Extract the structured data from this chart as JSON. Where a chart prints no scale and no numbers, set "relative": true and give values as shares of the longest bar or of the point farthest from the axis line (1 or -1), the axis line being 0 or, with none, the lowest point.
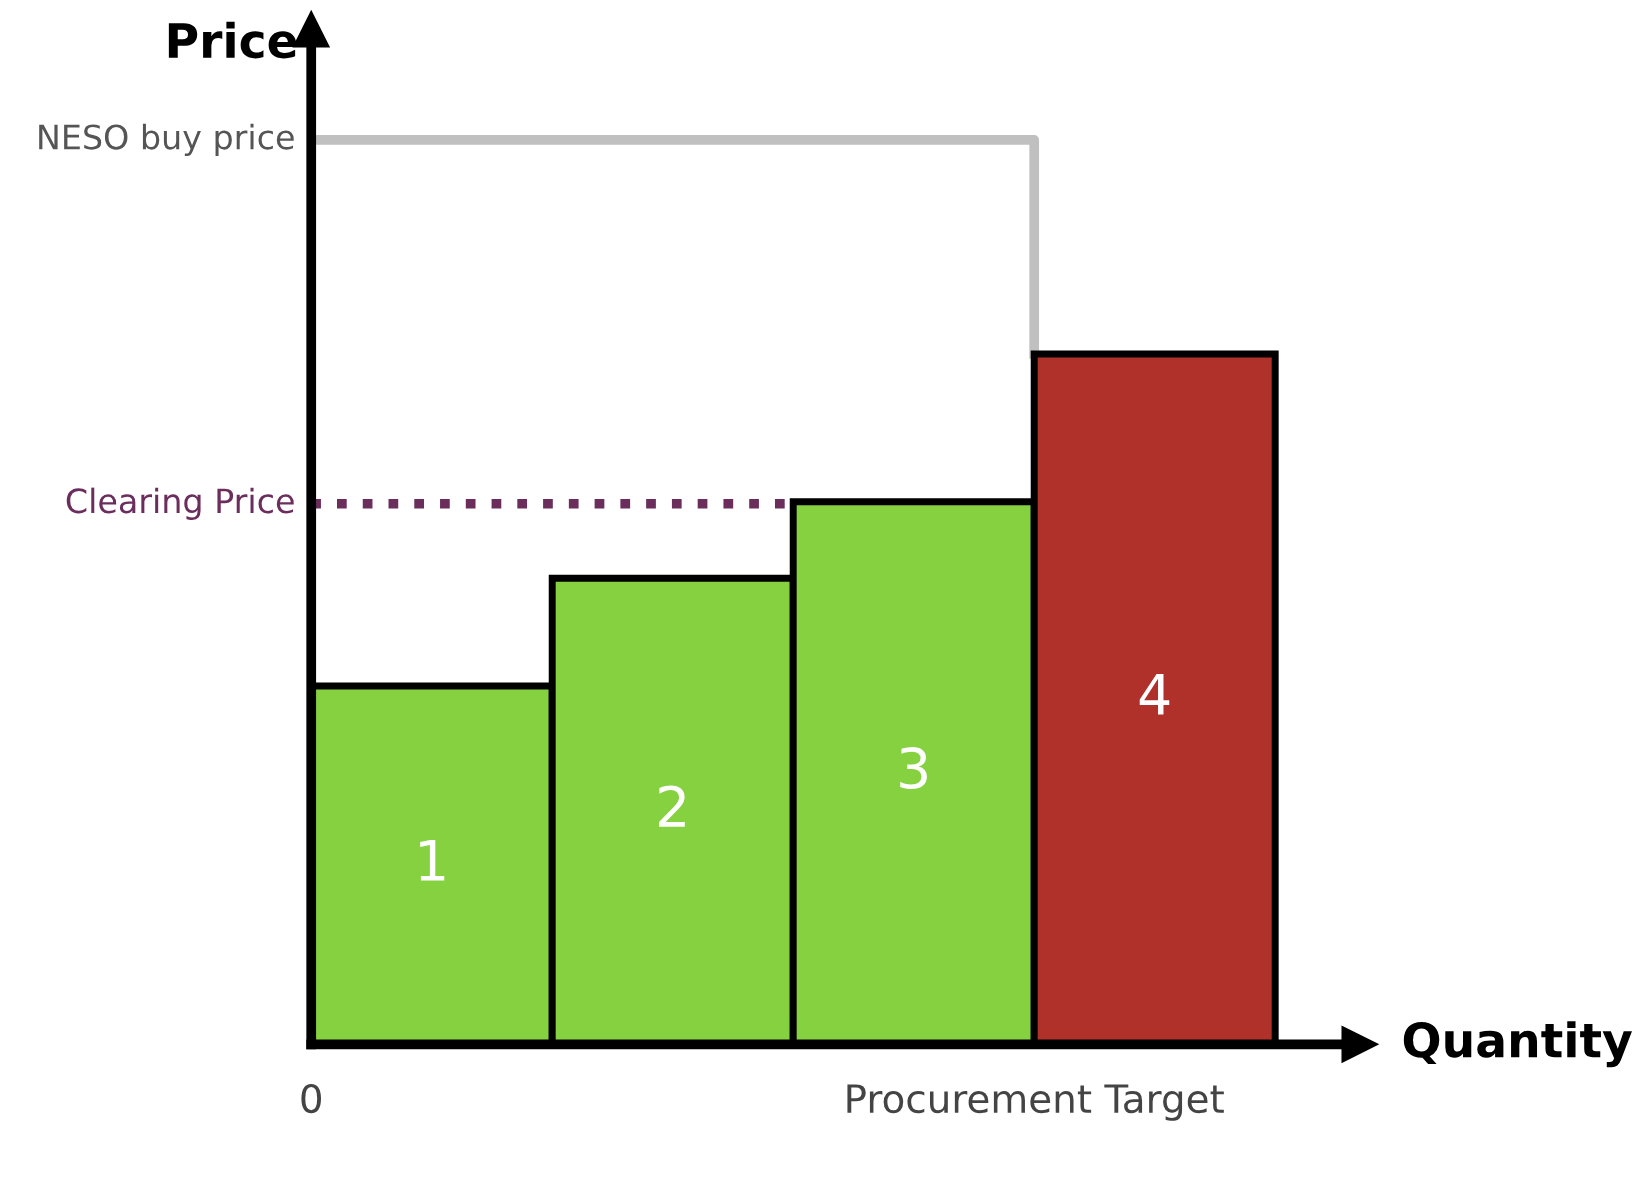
{
  "chart_data": {
    "type": "bar",
    "xlabel": "Quantity",
    "relative": true,
    "tick_labels": "x",
    "categories": [
      "1",
      "2",
      "3",
      "4"
    ],
    "values": [
      0.519,
      0.675,
      0.786,
      1
    ],
    "colors": [
      "#86d140",
      "#86d140",
      "#86d140",
      "#b0302a"
    ],
    "ref_lines": [
      {
        "axis": "y",
        "value": 1.31,
        "label": "NESO buy price",
        "color": "#c0c0c0",
        "line_style": "solid"
      },
      {
        "axis": "y",
        "value": 0.783,
        "label": "Clearing Price",
        "color": "#6b2d5c",
        "line_style": "dotted"
      }
    ],
    "annotations": [
      "Price",
      "0",
      "Procurement Target"
    ]
  }
}
